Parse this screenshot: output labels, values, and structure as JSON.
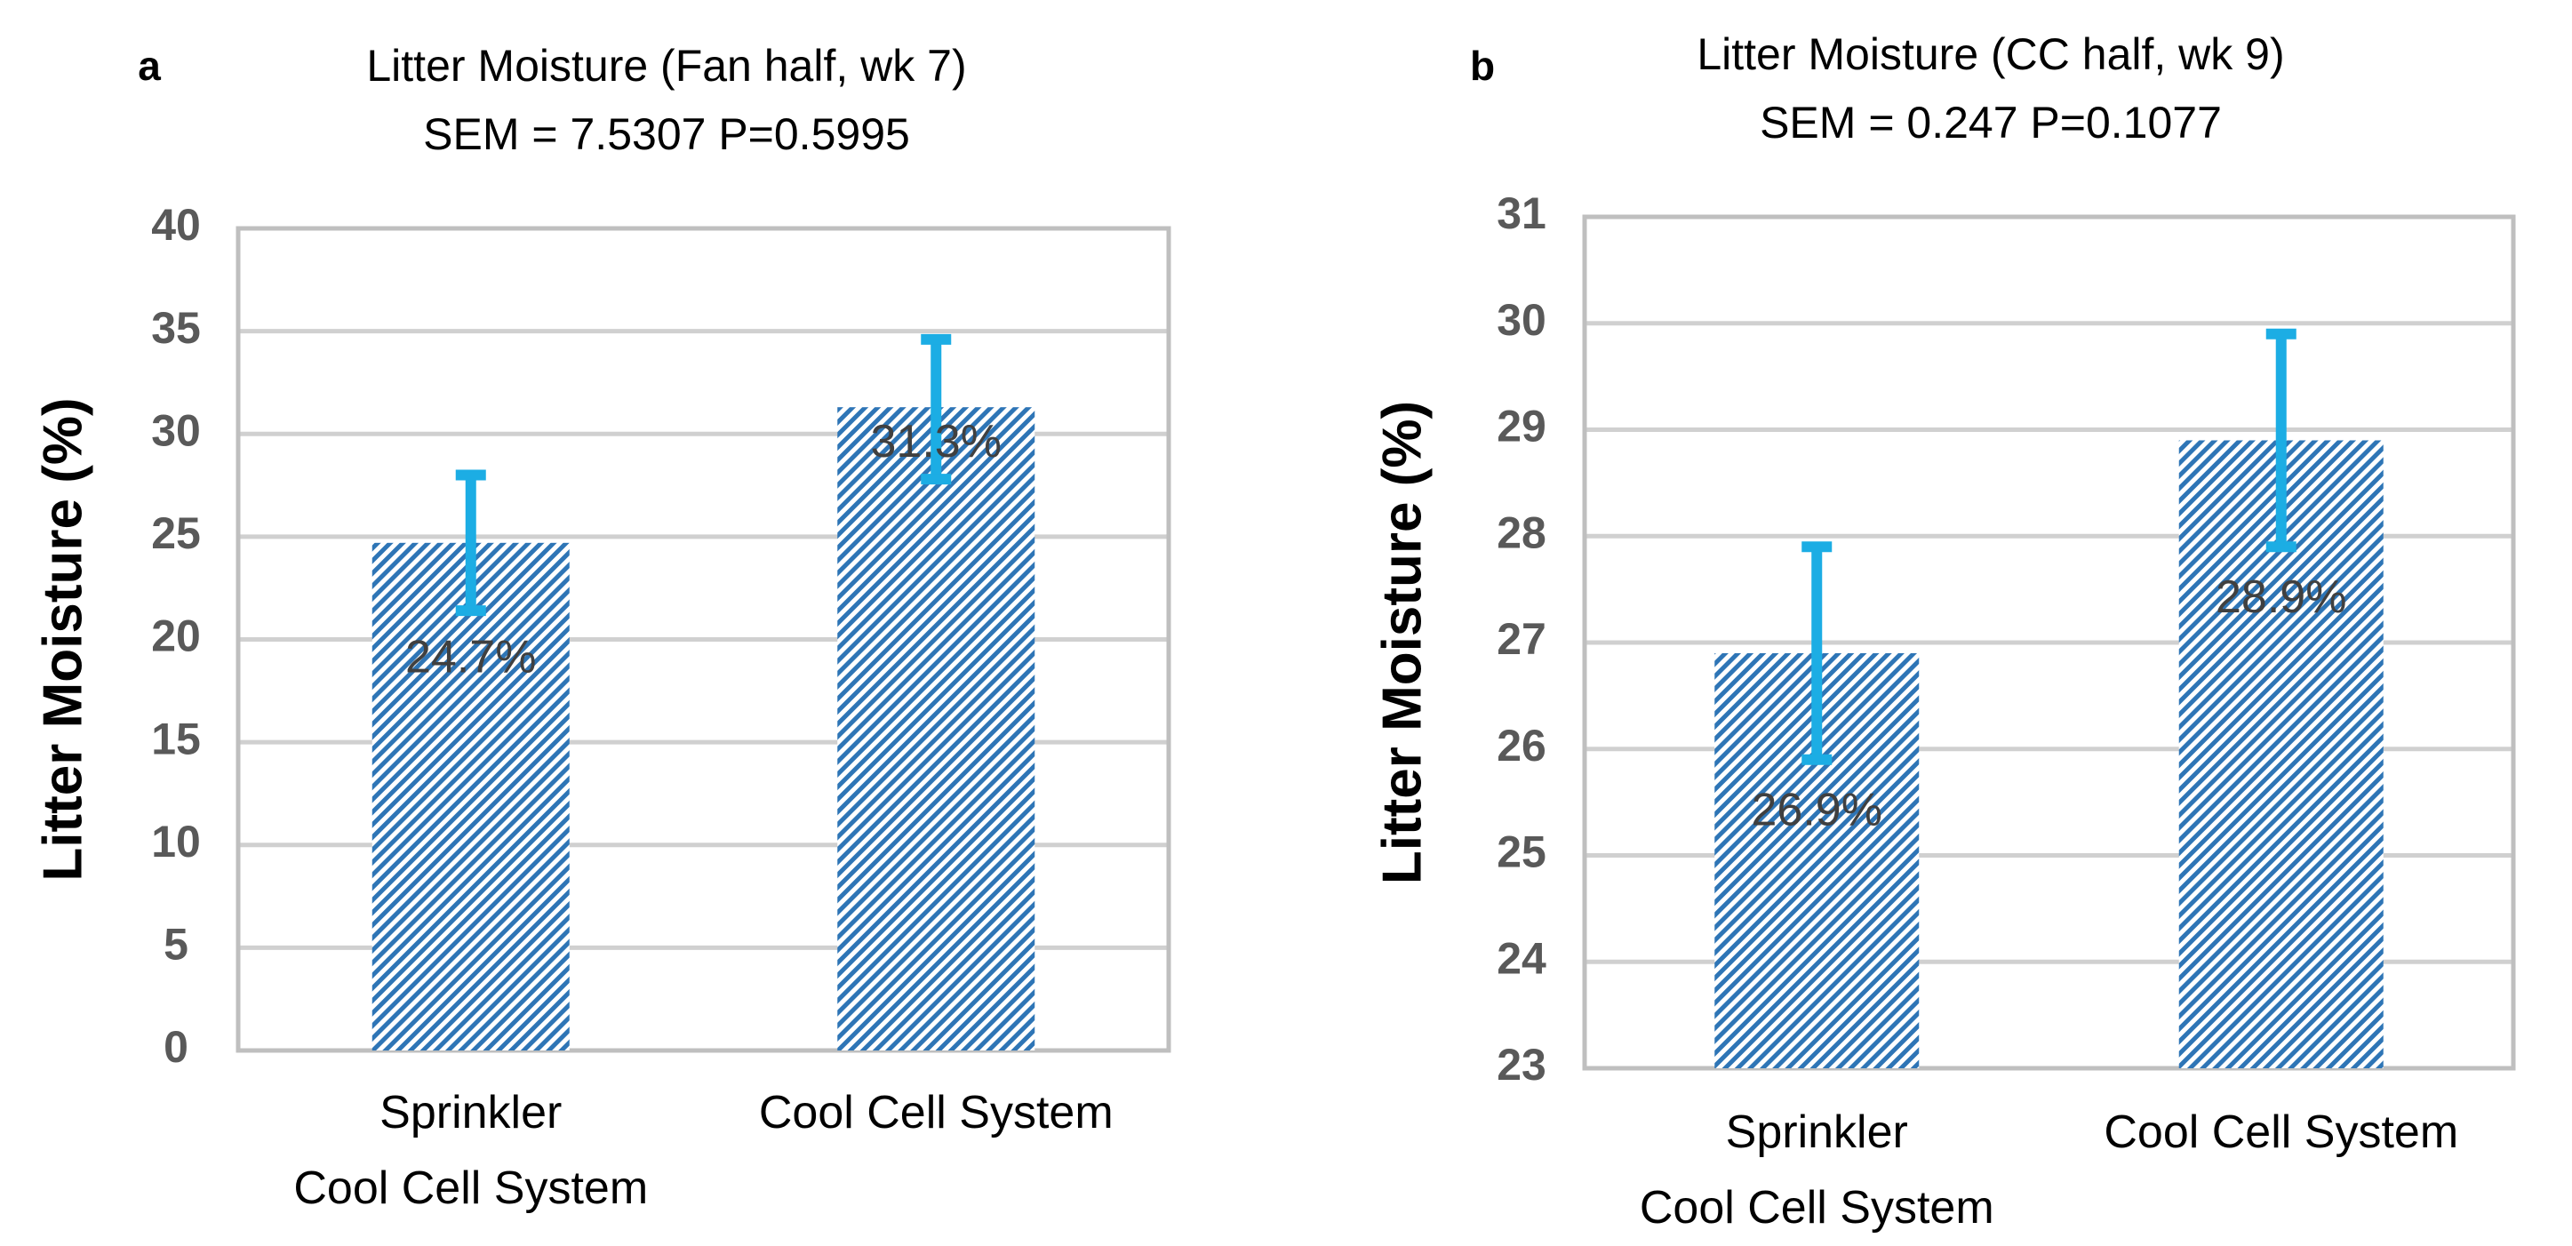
{
  "chart_data": [
    {
      "type": "bar",
      "panel": "a",
      "title": "Litter Moisture (Fan half, wk 7)",
      "subtitle": "SEM = 7.5307  P=0.5995",
      "ylabel": "Litter Moisture (%)",
      "xlabel": "",
      "ylim": [
        0,
        40
      ],
      "yticks": [
        0,
        5,
        10,
        15,
        20,
        25,
        30,
        35,
        40
      ],
      "grid": true,
      "categories": [
        [
          "Sprinkler",
          "Cool Cell System"
        ],
        [
          "Cool Cell System"
        ]
      ],
      "values": [
        24.7,
        31.3
      ],
      "error_low": [
        21.4,
        27.8
      ],
      "error_high": [
        28.0,
        34.6
      ],
      "data_labels": [
        "24.7%",
        "31.3%"
      ],
      "bar_color": "#2E75B6",
      "error_color": "#1CADE4"
    },
    {
      "type": "bar",
      "panel": "b",
      "title": "Litter Moisture (CC half, wk 9)",
      "subtitle": "SEM = 0.247   P=0.1077",
      "ylabel": "Litter Moisture (%)",
      "xlabel": "",
      "ylim": [
        23,
        31
      ],
      "yticks": [
        23,
        24,
        25,
        26,
        27,
        28,
        29,
        30,
        31
      ],
      "grid": true,
      "categories": [
        [
          "Sprinkler",
          "Cool Cell System"
        ],
        [
          "Cool Cell System"
        ]
      ],
      "values": [
        26.9,
        28.9
      ],
      "error_low": [
        25.9,
        27.9
      ],
      "error_high": [
        27.9,
        29.9
      ],
      "data_labels": [
        "26.9%",
        "28.9%"
      ],
      "bar_color": "#2E75B6",
      "error_color": "#1CADE4"
    }
  ]
}
